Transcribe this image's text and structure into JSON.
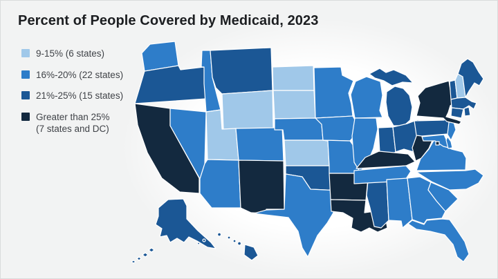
{
  "title": "Percent of People Covered by Medicaid, 2023",
  "legend": {
    "items": [
      {
        "label": "9-15% (6 states)",
        "label_line2": "",
        "color": "#a0c8e9",
        "key": "9-15"
      },
      {
        "label": "16%-20% (22 states)",
        "label_line2": "",
        "color": "#2e7dc9",
        "key": "16-20"
      },
      {
        "label": "21%-25% (15 states)",
        "label_line2": "",
        "color": "#1b5795",
        "key": "21-25"
      },
      {
        "label": "Greater than 25%",
        "label_line2": "(7 states and DC)",
        "color": "#13293f",
        "key": ">25"
      }
    ]
  },
  "chart_data": {
    "type": "choropleth",
    "title": "Percent of People Covered by Medicaid, 2023",
    "geography": "United States, 50 states and DC",
    "legend_position": "top-left",
    "categories": [
      {
        "key": "9-15",
        "label": "9-15% (6 states)",
        "range": [
          9,
          15
        ],
        "states_count": 6,
        "color": "#a0c8e9"
      },
      {
        "key": "16-20",
        "label": "16%-20% (22 states)",
        "range": [
          16,
          20
        ],
        "states_count": 22,
        "color": "#2e7dc9"
      },
      {
        "key": "21-25",
        "label": "21%-25% (15 states)",
        "range": [
          21,
          25
        ],
        "states_count": 15,
        "color": "#1b5795"
      },
      {
        "key": ">25",
        "label": "Greater than 25% (7 states and DC)",
        "range": [
          25,
          null
        ],
        "states_count": 8,
        "color": "#13293f"
      }
    ],
    "states": {
      "WA": "16-20",
      "OR": "21-25",
      "CA": ">25",
      "NV": "16-20",
      "ID": "16-20",
      "MT": "21-25",
      "WY": "9-15",
      "UT": "9-15",
      "CO": "16-20",
      "AZ": "16-20",
      "NM": ">25",
      "ND": "9-15",
      "SD": "9-15",
      "NE": "16-20",
      "KS": "9-15",
      "OK": "21-25",
      "TX": "16-20",
      "MN": "16-20",
      "IA": "16-20",
      "MO": "16-20",
      "AR": ">25",
      "LA": ">25",
      "WI": "16-20",
      "IL": "16-20",
      "MS": "21-25",
      "MI": "21-25",
      "IN": "21-25",
      "OH": "21-25",
      "KY": ">25",
      "TN": "16-20",
      "AL": "16-20",
      "GA": "16-20",
      "FL": "16-20",
      "SC": "16-20",
      "NC": "16-20",
      "VA": "16-20",
      "WV": ">25",
      "MD": "16-20",
      "DE": "16-20",
      "NJ": "16-20",
      "PA": "21-25",
      "NY": ">25",
      "VT": "21-25",
      "NH": "9-15",
      "ME": "21-25",
      "MA": "21-25",
      "CT": "21-25",
      "RI": "21-25",
      "AK": "21-25",
      "HI": "21-25",
      "DC": ">25"
    }
  }
}
